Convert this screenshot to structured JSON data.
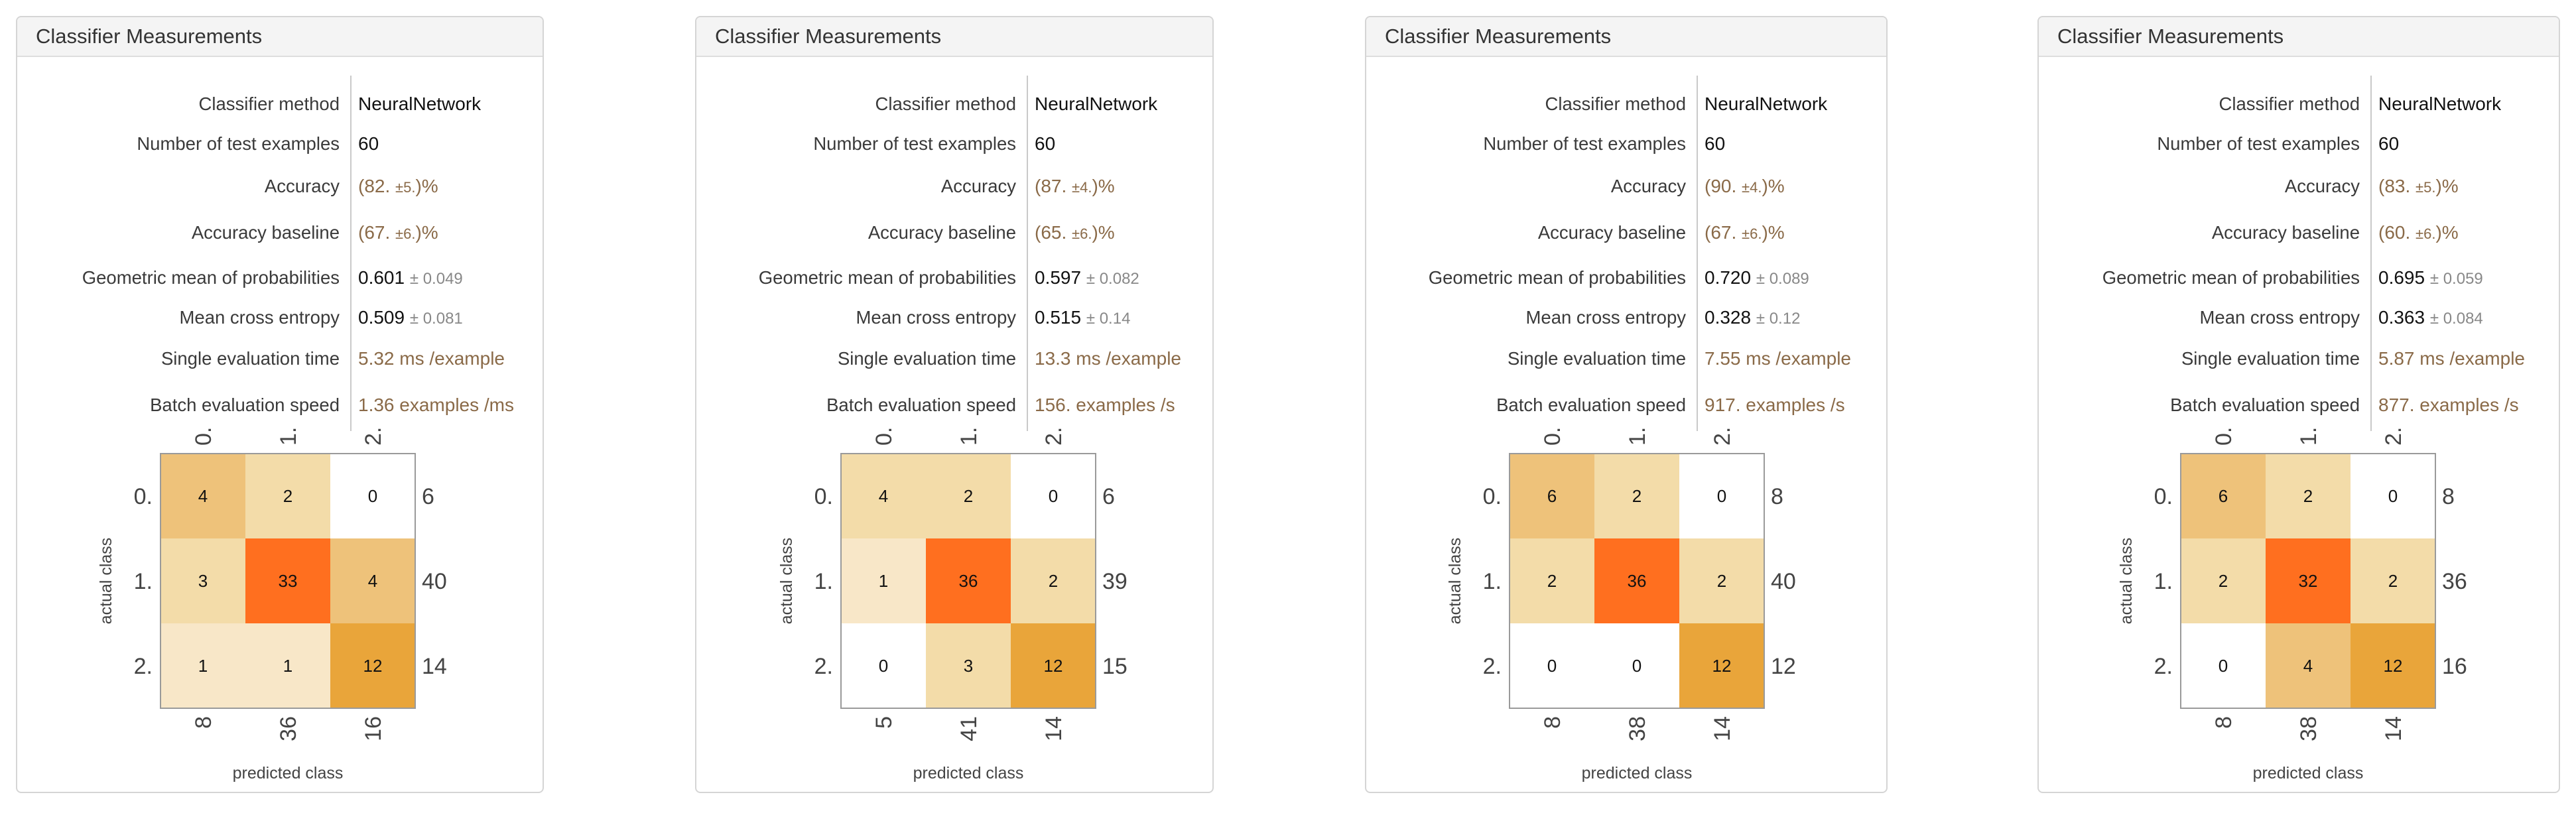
{
  "panels": [
    {
      "title": "Classifier Measurements",
      "metrics": {
        "method": {
          "label": "Classifier method",
          "value": "NeuralNetwork"
        },
        "num_test": {
          "label": "Number of test examples",
          "value": "60"
        },
        "accuracy": {
          "label": "Accuracy",
          "open": "(",
          "main": "82.",
          "pm": "±5.",
          "close": ")%"
        },
        "baseline": {
          "label": "Accuracy baseline",
          "open": "(",
          "main": "67.",
          "pm": "±6.",
          "close": ")%"
        },
        "geo_mean": {
          "label": "Geometric mean of probabilities",
          "value": "0.601",
          "pm": "± 0.049"
        },
        "cross_entropy": {
          "label": "Mean cross entropy",
          "value": "0.509",
          "pm": "± 0.081"
        },
        "eval_time": {
          "label": "Single evaluation time",
          "value": "5.32",
          "unit": "ms /example"
        },
        "batch_speed": {
          "label": "Batch evaluation speed",
          "value": "1.36",
          "unit": "examples /ms"
        }
      },
      "matrix": {
        "class_labels": [
          "0.",
          "1.",
          "2."
        ],
        "values": [
          [
            4,
            2,
            0
          ],
          [
            3,
            33,
            4
          ],
          [
            1,
            1,
            12
          ]
        ],
        "row_totals": [
          "6",
          "40",
          "14"
        ],
        "col_totals": [
          "8",
          "36",
          "16"
        ],
        "ylabel": "actual class",
        "xlabel": "predicted class"
      }
    },
    {
      "title": "Classifier Measurements",
      "metrics": {
        "method": {
          "label": "Classifier method",
          "value": "NeuralNetwork"
        },
        "num_test": {
          "label": "Number of test examples",
          "value": "60"
        },
        "accuracy": {
          "label": "Accuracy",
          "open": "(",
          "main": "87.",
          "pm": "±4.",
          "close": ")%"
        },
        "baseline": {
          "label": "Accuracy baseline",
          "open": "(",
          "main": "65.",
          "pm": "±6.",
          "close": ")%"
        },
        "geo_mean": {
          "label": "Geometric mean of probabilities",
          "value": "0.597",
          "pm": "± 0.082"
        },
        "cross_entropy": {
          "label": "Mean cross entropy",
          "value": "0.515",
          "pm": "± 0.14"
        },
        "eval_time": {
          "label": "Single evaluation time",
          "value": "13.3",
          "unit": "ms /example"
        },
        "batch_speed": {
          "label": "Batch evaluation speed",
          "value": "156.",
          "unit": "examples /s"
        }
      },
      "matrix": {
        "class_labels": [
          "0.",
          "1.",
          "2."
        ],
        "values": [
          [
            4,
            2,
            0
          ],
          [
            1,
            36,
            2
          ],
          [
            0,
            3,
            12
          ]
        ],
        "row_totals": [
          "6",
          "39",
          "15"
        ],
        "col_totals": [
          "5",
          "41",
          "14"
        ],
        "ylabel": "actual class",
        "xlabel": "predicted class"
      }
    },
    {
      "title": "Classifier Measurements",
      "metrics": {
        "method": {
          "label": "Classifier method",
          "value": "NeuralNetwork"
        },
        "num_test": {
          "label": "Number of test examples",
          "value": "60"
        },
        "accuracy": {
          "label": "Accuracy",
          "open": "(",
          "main": "90.",
          "pm": "±4.",
          "close": ")%"
        },
        "baseline": {
          "label": "Accuracy baseline",
          "open": "(",
          "main": "67.",
          "pm": "±6.",
          "close": ")%"
        },
        "geo_mean": {
          "label": "Geometric mean of probabilities",
          "value": "0.720",
          "pm": "± 0.089"
        },
        "cross_entropy": {
          "label": "Mean cross entropy",
          "value": "0.328",
          "pm": "± 0.12"
        },
        "eval_time": {
          "label": "Single evaluation time",
          "value": "7.55",
          "unit": "ms /example"
        },
        "batch_speed": {
          "label": "Batch evaluation speed",
          "value": "917.",
          "unit": "examples /s"
        }
      },
      "matrix": {
        "class_labels": [
          "0.",
          "1.",
          "2."
        ],
        "values": [
          [
            6,
            2,
            0
          ],
          [
            2,
            36,
            2
          ],
          [
            0,
            0,
            12
          ]
        ],
        "row_totals": [
          "8",
          "40",
          "12"
        ],
        "col_totals": [
          "8",
          "38",
          "14"
        ],
        "ylabel": "actual class",
        "xlabel": "predicted class"
      }
    },
    {
      "title": "Classifier Measurements",
      "metrics": {
        "method": {
          "label": "Classifier method",
          "value": "NeuralNetwork"
        },
        "num_test": {
          "label": "Number of test examples",
          "value": "60"
        },
        "accuracy": {
          "label": "Accuracy",
          "open": "(",
          "main": "83.",
          "pm": "±5.",
          "close": ")%"
        },
        "baseline": {
          "label": "Accuracy baseline",
          "open": "(",
          "main": "60.",
          "pm": "±6.",
          "close": ")%"
        },
        "geo_mean": {
          "label": "Geometric mean of probabilities",
          "value": "0.695",
          "pm": "± 0.059"
        },
        "cross_entropy": {
          "label": "Mean cross entropy",
          "value": "0.363",
          "pm": "± 0.084"
        },
        "eval_time": {
          "label": "Single evaluation time",
          "value": "5.87",
          "unit": "ms /example"
        },
        "batch_speed": {
          "label": "Batch evaluation speed",
          "value": "877.",
          "unit": "examples /s"
        }
      },
      "matrix": {
        "class_labels": [
          "0.",
          "1.",
          "2."
        ],
        "values": [
          [
            6,
            2,
            0
          ],
          [
            2,
            32,
            2
          ],
          [
            0,
            4,
            12
          ]
        ],
        "row_totals": [
          "8",
          "36",
          "16"
        ],
        "col_totals": [
          "8",
          "38",
          "14"
        ],
        "ylabel": "actual class",
        "xlabel": "predicted class"
      }
    }
  ],
  "colors": {
    "cell_scale": [
      "#ffffff",
      "#f8e7c8",
      "#f3dca9",
      "#eec27a",
      "#e9a53a",
      "#ff6f1f"
    ],
    "value_brown": "#8a6a48",
    "border": "#d5d5d5",
    "title_bg": "#f4f4f4"
  }
}
